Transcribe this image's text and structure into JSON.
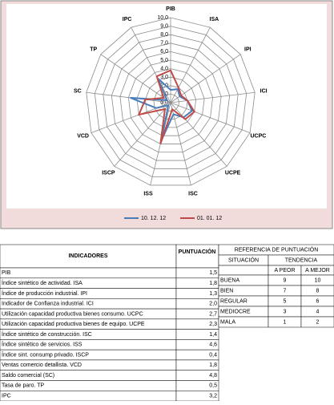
{
  "chart_data": {
    "type": "radar",
    "categories": [
      "PIB",
      "ISA",
      "IPI",
      "ICI",
      "UCPC",
      "UCPE",
      "ISC",
      "ISS",
      "ISCP",
      "VCD",
      "SC",
      "TP",
      "IPC"
    ],
    "ylim": [
      0,
      10
    ],
    "yticks": [
      {
        "value": 0,
        "label": "0,0"
      },
      {
        "value": 1,
        "label": "1,0"
      },
      {
        "value": 2,
        "label": "2,0"
      },
      {
        "value": 3,
        "label": "3,0"
      },
      {
        "value": 4,
        "label": "4,0"
      },
      {
        "value": 5,
        "label": "5,0"
      },
      {
        "value": 6,
        "label": "6,0"
      },
      {
        "value": 7,
        "label": "7,0"
      },
      {
        "value": 8,
        "label": "8,0"
      },
      {
        "value": 9,
        "label": "9,0"
      },
      {
        "value": 10,
        "label": "10,0"
      }
    ],
    "grid": true,
    "series": [
      {
        "name": "10. 12. 12",
        "color": "#4a7ebb",
        "values": [
          1.5,
          1.8,
          1.3,
          2.0,
          2.7,
          2.3,
          1.4,
          4.6,
          0.4,
          1.8,
          4.8,
          0.5,
          3.2
        ],
        "value_labels": [
          "1,5",
          "1,8",
          "1,3",
          "2,0",
          "2,7",
          "2,3",
          "1,4",
          "4,6",
          "0,4",
          "1,8",
          "4,8",
          "0,5",
          "3,2"
        ]
      },
      {
        "name": "01. 01. 12",
        "color": "#be4b48",
        "values": [
          3.8,
          2.0,
          1.5,
          2.0,
          3.0,
          2.6,
          0.8,
          5.0,
          1.0,
          4.0,
          3.0,
          1.0,
          3.5
        ]
      }
    ]
  },
  "table": {
    "header": [
      "INDICADORES",
      "PUNTUACIÓN"
    ],
    "rows": [
      "PIB",
      "Índice sintético de actividad. ISA",
      "Índice de producción industrial. IPI",
      "Indicador de Confianza industrial. ICI",
      "Utilización capacidad productiva bienes consumo. UCPC",
      "Utilización capacidad productiva bienes de equipo. UCPE",
      "Índice sintético de construcción. ISC",
      "Índice sintético de servicios. ISS",
      "Índice sint. consump privado. ISCP",
      "Ventas comercio detallista. VCD",
      "Saldo comercial (SC)",
      "Tasa de paro. TP",
      "IPC"
    ]
  },
  "reference": {
    "title": "REFERENCIA DE PUNTUACIÓN",
    "situacion": "SITUACIÓN",
    "tendencia": "TENDENCIA",
    "peor": "A PEOR",
    "mejor": "A MEJOR",
    "rows": [
      [
        "BUENA",
        9,
        10
      ],
      [
        "BIEN",
        7,
        8
      ],
      [
        "REGULAR",
        5,
        6
      ],
      [
        "MEDIOCRE",
        3,
        4
      ],
      [
        "MALA",
        1,
        2
      ]
    ]
  }
}
